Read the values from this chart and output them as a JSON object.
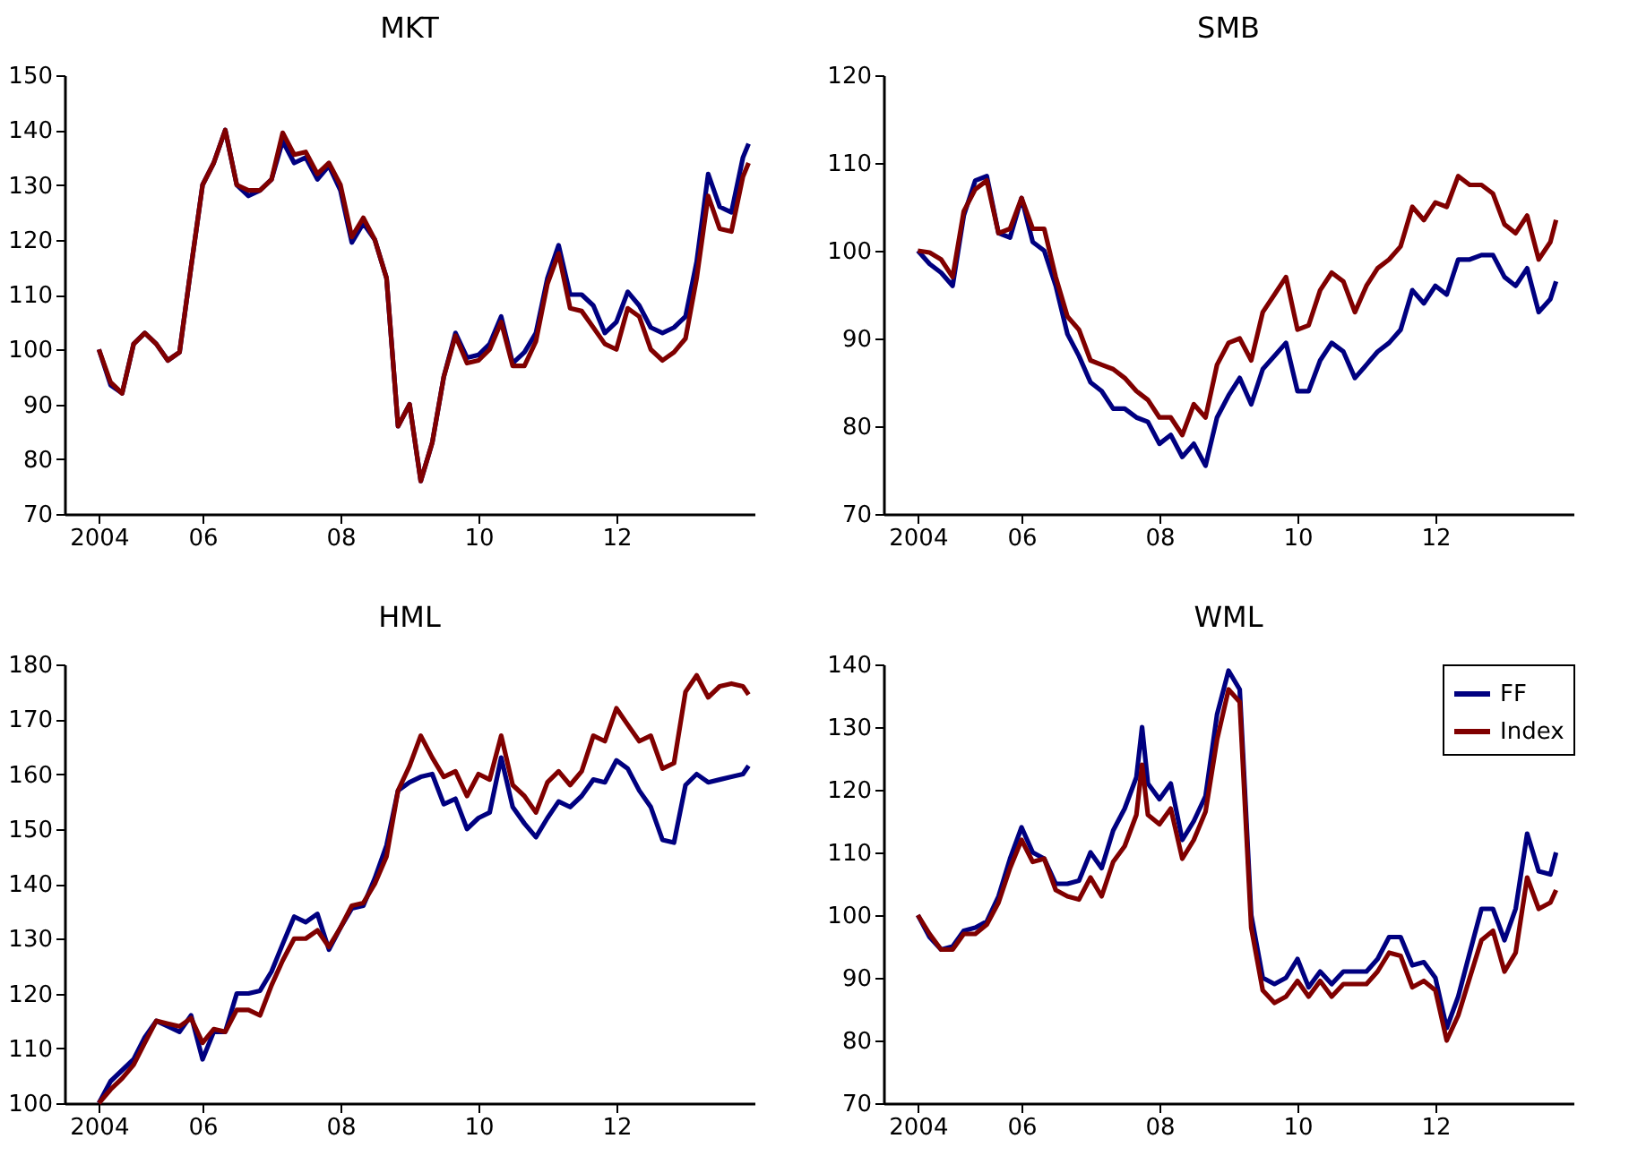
{
  "chart_data": [
    {
      "type": "line",
      "title": "MKT",
      "x": [
        "2004-07",
        "2004-09",
        "2004-11",
        "2005-01",
        "2005-03",
        "2005-05",
        "2005-07",
        "2005-09",
        "2005-11",
        "2006-01",
        "2006-03",
        "2006-05",
        "2006-07",
        "2006-09",
        "2006-11",
        "2007-01",
        "2007-03",
        "2007-05",
        "2007-07",
        "2007-09",
        "2007-11",
        "2008-01",
        "2008-03",
        "2008-05",
        "2008-07",
        "2008-09",
        "2008-11",
        "2009-01",
        "2009-03",
        "2009-05",
        "2009-07",
        "2009-09",
        "2009-11",
        "2010-01",
        "2010-03",
        "2010-05",
        "2010-07",
        "2010-09",
        "2010-11",
        "2011-01",
        "2011-03",
        "2011-05",
        "2011-07",
        "2011-09",
        "2011-11",
        "2012-01",
        "2012-03",
        "2012-05",
        "2012-07",
        "2012-09",
        "2012-11",
        "2013-01",
        "2013-03",
        "2013-05",
        "2013-07",
        "2013-09",
        "2013-11",
        "2013-12"
      ],
      "series": [
        {
          "color": "#000080",
          "values": [
            100,
            93.5,
            92,
            101,
            103,
            101,
            98,
            99.5,
            115,
            130,
            134,
            140,
            130,
            128,
            129,
            131,
            138,
            134,
            135,
            131,
            133.5,
            129,
            119.5,
            123,
            120,
            113,
            86,
            90,
            76,
            83,
            95,
            103,
            98.5,
            99,
            101,
            106,
            97.5,
            99.5,
            103,
            113,
            119,
            110,
            110,
            108,
            103,
            105,
            110.5,
            108,
            104,
            103,
            104,
            106,
            116,
            132,
            126,
            125,
            135,
            137.5
          ]
        },
        {
          "color": "#800000",
          "values": [
            100,
            94,
            92,
            101,
            103,
            101,
            98,
            99.5,
            115,
            130,
            134,
            140,
            130,
            129,
            129,
            131,
            139.5,
            135.5,
            136,
            132,
            134,
            130,
            120.5,
            124,
            120,
            113,
            86,
            90,
            76,
            83,
            95,
            102.5,
            97.5,
            98,
            100,
            105,
            97,
            97,
            101.5,
            112,
            117.5,
            107.5,
            107,
            104,
            101,
            100,
            107.5,
            106,
            100,
            98,
            99.5,
            102,
            113,
            128,
            122,
            121.5,
            131.5,
            134
          ]
        }
      ],
      "xlim": [
        "2004-01",
        "2014-01"
      ],
      "xticks": [
        {
          "value": "2004-07",
          "label": "2004"
        },
        {
          "value": "2006-01",
          "label": "06"
        },
        {
          "value": "2008-01",
          "label": "08"
        },
        {
          "value": "2010-01",
          "label": "10"
        },
        {
          "value": "2012-01",
          "label": "12"
        }
      ],
      "ylim": [
        70,
        150
      ],
      "yticks": [
        70,
        80,
        90,
        100,
        110,
        120,
        130,
        140,
        150
      ]
    },
    {
      "type": "line",
      "title": "SMB",
      "x": [
        "2004-07",
        "2004-09",
        "2004-11",
        "2005-01",
        "2005-03",
        "2005-05",
        "2005-07",
        "2005-09",
        "2005-11",
        "2006-01",
        "2006-03",
        "2006-05",
        "2006-07",
        "2006-09",
        "2006-11",
        "2007-01",
        "2007-03",
        "2007-05",
        "2007-07",
        "2007-09",
        "2007-11",
        "2008-01",
        "2008-03",
        "2008-05",
        "2008-07",
        "2008-09",
        "2008-11",
        "2009-01",
        "2009-03",
        "2009-05",
        "2009-07",
        "2009-09",
        "2009-11",
        "2010-01",
        "2010-03",
        "2010-05",
        "2010-07",
        "2010-09",
        "2010-11",
        "2011-01",
        "2011-03",
        "2011-05",
        "2011-07",
        "2011-09",
        "2011-11",
        "2012-01",
        "2012-03",
        "2012-05",
        "2012-07",
        "2012-09",
        "2012-11",
        "2013-01",
        "2013-03",
        "2013-05",
        "2013-07",
        "2013-09",
        "2013-10"
      ],
      "series": [
        {
          "color": "#000080",
          "values": [
            100,
            98.5,
            97.5,
            96,
            104,
            108,
            108.5,
            102,
            101.5,
            106,
            101,
            100,
            96,
            90.5,
            88,
            85,
            84,
            82,
            82,
            81,
            80.5,
            78,
            79,
            76.5,
            78,
            75.5,
            81,
            83.5,
            85.5,
            82.5,
            86.5,
            88,
            89.5,
            84,
            84,
            87.5,
            89.5,
            88.5,
            85.5,
            87,
            88.5,
            89.5,
            91,
            95.5,
            94,
            96,
            95,
            99,
            99,
            99.5,
            99.5,
            97,
            96,
            98,
            93,
            94.5,
            96.5
          ]
        },
        {
          "color": "#800000",
          "values": [
            100,
            99.8,
            99,
            97,
            104.5,
            107,
            108,
            102,
            102.5,
            106,
            102.5,
            102.5,
            97,
            92.5,
            91,
            87.5,
            87,
            86.5,
            85.5,
            84,
            83,
            81,
            81,
            79,
            82.5,
            81,
            87,
            89.5,
            90,
            87.5,
            93,
            95,
            97,
            91,
            91.5,
            95.5,
            97.5,
            96.5,
            93,
            96,
            98,
            99,
            100.5,
            105,
            103.5,
            105.5,
            105,
            108.5,
            107.5,
            107.5,
            106.5,
            103,
            102,
            104,
            99,
            101,
            103.5
          ]
        }
      ],
      "xlim": [
        "2004-01",
        "2014-01"
      ],
      "xticks": [
        {
          "value": "2004-07",
          "label": "2004"
        },
        {
          "value": "2006-01",
          "label": "06"
        },
        {
          "value": "2008-01",
          "label": "08"
        },
        {
          "value": "2010-01",
          "label": "10"
        },
        {
          "value": "2012-01",
          "label": "12"
        }
      ],
      "ylim": [
        70,
        120
      ],
      "yticks": [
        70,
        80,
        90,
        100,
        110,
        120
      ]
    },
    {
      "type": "line",
      "title": "HML",
      "x": [
        "2004-07",
        "2004-09",
        "2004-11",
        "2005-01",
        "2005-03",
        "2005-05",
        "2005-07",
        "2005-09",
        "2005-11",
        "2006-01",
        "2006-03",
        "2006-05",
        "2006-07",
        "2006-09",
        "2006-11",
        "2007-01",
        "2007-03",
        "2007-05",
        "2007-07",
        "2007-09",
        "2007-11",
        "2008-01",
        "2008-03",
        "2008-05",
        "2008-07",
        "2008-09",
        "2008-11",
        "2009-01",
        "2009-03",
        "2009-05",
        "2009-07",
        "2009-09",
        "2009-11",
        "2010-01",
        "2010-03",
        "2010-05",
        "2010-07",
        "2010-09",
        "2010-11",
        "2011-01",
        "2011-03",
        "2011-05",
        "2011-07",
        "2011-09",
        "2011-11",
        "2012-01",
        "2012-03",
        "2012-05",
        "2012-07",
        "2012-09",
        "2012-11",
        "2013-01",
        "2013-03",
        "2013-05",
        "2013-07",
        "2013-09",
        "2013-11",
        "2013-12"
      ],
      "series": [
        {
          "color": "#000080",
          "values": [
            100,
            104,
            106,
            108,
            112,
            115,
            114,
            113,
            116,
            108,
            113,
            113,
            120,
            120,
            120.5,
            124,
            129,
            134,
            133,
            134.5,
            128,
            132,
            135.5,
            136,
            141,
            147,
            157,
            158.5,
            159.5,
            160,
            154.5,
            155.5,
            150,
            152,
            153,
            163,
            154,
            151,
            148.5,
            152,
            155,
            154,
            156,
            159,
            158.5,
            162.5,
            161,
            157,
            154,
            148,
            147.5,
            158,
            160,
            158.5,
            159,
            159.5,
            160,
            161.5
          ]
        },
        {
          "color": "#800000",
          "values": [
            100,
            102.5,
            104.5,
            107,
            111,
            115,
            114.5,
            114,
            115.5,
            111,
            113.5,
            113,
            117,
            117,
            116,
            121.5,
            126,
            130,
            130,
            131.5,
            128.5,
            132,
            136,
            136.5,
            140,
            145,
            157,
            161.5,
            167,
            163,
            159.5,
            160.5,
            156,
            160,
            159,
            167,
            158,
            156,
            153,
            158.5,
            160.5,
            158,
            160.5,
            167,
            166,
            172,
            169,
            166,
            167,
            161,
            162,
            175,
            178,
            174,
            176,
            176.5,
            176,
            174.5
          ]
        }
      ],
      "xlim": [
        "2004-01",
        "2014-01"
      ],
      "xticks": [
        {
          "value": "2004-07",
          "label": "2004"
        },
        {
          "value": "2006-01",
          "label": "06"
        },
        {
          "value": "2008-01",
          "label": "08"
        },
        {
          "value": "2010-01",
          "label": "10"
        },
        {
          "value": "2012-01",
          "label": "12"
        }
      ],
      "ylim": [
        100,
        180
      ],
      "yticks": [
        100,
        110,
        120,
        130,
        140,
        150,
        160,
        170,
        180
      ]
    },
    {
      "type": "line",
      "title": "WML",
      "legend": "top right",
      "x": [
        "2004-07",
        "2004-09",
        "2004-11",
        "2005-01",
        "2005-03",
        "2005-05",
        "2005-07",
        "2005-09",
        "2005-11",
        "2006-01",
        "2006-03",
        "2006-05",
        "2006-07",
        "2006-09",
        "2006-11",
        "2007-01",
        "2007-03",
        "2007-05",
        "2007-07",
        "2007-09",
        "2007-10",
        "2007-11",
        "2008-01",
        "2008-03",
        "2008-05",
        "2008-07",
        "2008-09",
        "2008-11",
        "2009-01",
        "2009-03",
        "2009-05",
        "2009-07",
        "2009-09",
        "2009-11",
        "2010-01",
        "2010-03",
        "2010-05",
        "2010-07",
        "2010-09",
        "2010-11",
        "2011-01",
        "2011-03",
        "2011-05",
        "2011-07",
        "2011-09",
        "2011-11",
        "2012-01",
        "2012-03",
        "2012-05",
        "2012-07",
        "2012-09",
        "2012-11",
        "2013-01",
        "2013-03",
        "2013-05",
        "2013-07",
        "2013-09",
        "2013-10"
      ],
      "series": [
        {
          "name": "FF",
          "color": "#000080",
          "values": [
            100,
            96.5,
            94.5,
            95,
            97.5,
            98,
            99,
            103,
            109,
            114,
            110,
            109,
            105,
            105,
            105.5,
            110,
            107.5,
            113.5,
            117,
            122,
            130,
            121,
            118.5,
            121,
            112,
            115,
            119,
            132,
            139,
            136,
            100,
            90,
            89,
            90,
            93,
            88.5,
            91,
            89,
            91,
            91,
            91,
            93,
            96.5,
            96.5,
            92,
            92.5,
            90,
            82,
            87,
            94,
            101,
            101,
            96,
            101,
            113,
            107,
            106.5,
            110
          ]
        },
        {
          "name": "Index",
          "color": "#800000",
          "values": [
            100,
            97,
            94.5,
            94.5,
            97,
            97,
            98.5,
            102,
            107.5,
            112,
            108.5,
            109,
            104,
            103,
            102.5,
            106,
            103,
            108.5,
            111,
            116,
            124,
            116,
            114.5,
            117,
            109,
            112,
            116.5,
            128,
            136,
            134,
            98,
            88,
            86,
            87,
            89.5,
            87,
            89.5,
            87,
            89,
            89,
            89,
            91,
            94,
            93.5,
            88.5,
            89.5,
            88,
            80,
            84,
            90,
            96,
            97.5,
            91,
            94,
            106,
            101,
            102,
            104
          ]
        }
      ],
      "xlim": [
        "2004-01",
        "2014-01"
      ],
      "xticks": [
        {
          "value": "2004-07",
          "label": "2004"
        },
        {
          "value": "2006-01",
          "label": "06"
        },
        {
          "value": "2008-01",
          "label": "08"
        },
        {
          "value": "2010-01",
          "label": "10"
        },
        {
          "value": "2012-01",
          "label": "12"
        }
      ],
      "ylim": [
        70,
        140
      ],
      "yticks": [
        70,
        80,
        90,
        100,
        110,
        120,
        130,
        140
      ]
    }
  ]
}
